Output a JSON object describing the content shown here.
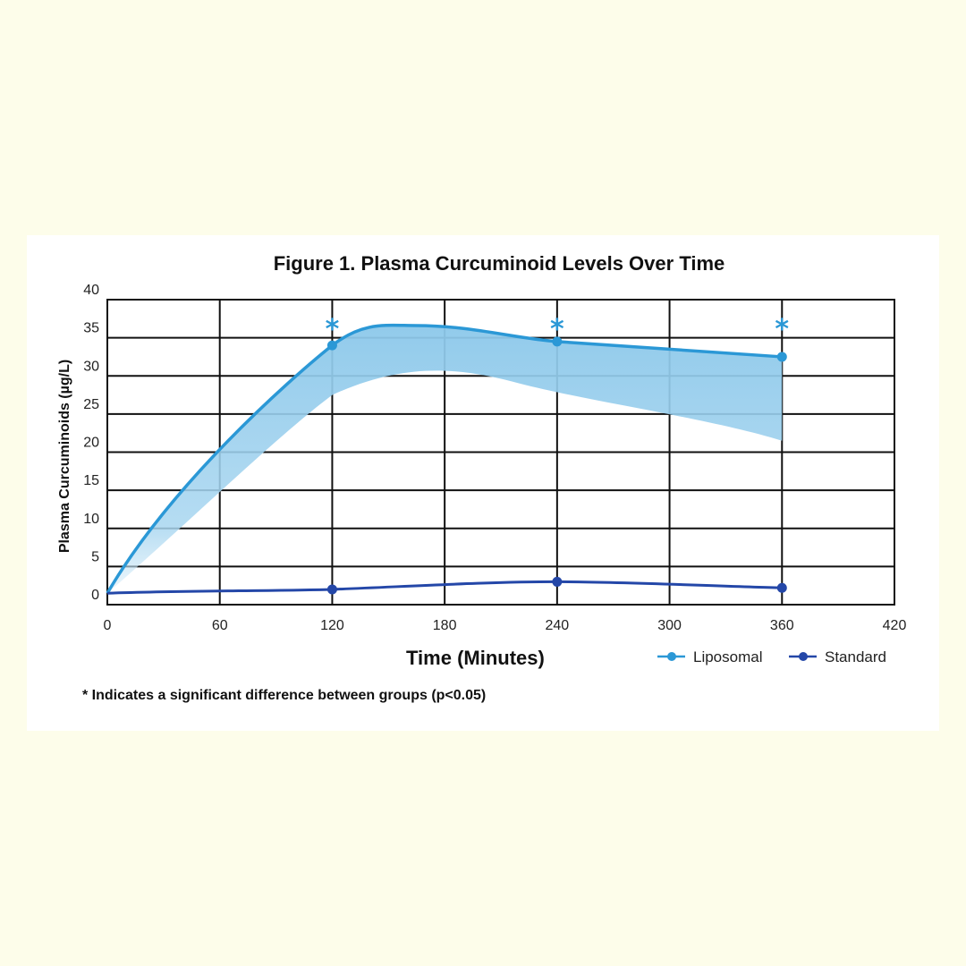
{
  "chart_data": {
    "type": "line",
    "title": "Figure 1. Plasma Curcuminoid Levels Over Time",
    "xlabel": "Time (Minutes)",
    "ylabel": "Plasma Curcuminoids (µg/L)",
    "xlim": [
      0,
      420
    ],
    "ylim": [
      0,
      40
    ],
    "x_ticks": [
      "0",
      "60",
      "120",
      "180",
      "240",
      "300",
      "360",
      "420"
    ],
    "y_ticks": [
      "0",
      "5",
      "10",
      "15",
      "20",
      "25",
      "30",
      "35",
      "40"
    ],
    "grid": true,
    "legend_position": "bottom-right",
    "footnote": "* Indicates a significant difference between groups (p<0.05)",
    "significance_marker": "*",
    "significant_at": [
      120,
      240,
      360
    ],
    "series": [
      {
        "name": "Liposomal",
        "color": "#2b98d6",
        "x": [
          0,
          120,
          240,
          360
        ],
        "y": [
          1.5,
          34,
          34.5,
          32.5
        ]
      },
      {
        "name": "Standard",
        "color": "#2447a8",
        "x": [
          0,
          120,
          240,
          360
        ],
        "y": [
          1.5,
          2,
          3,
          2.2
        ]
      }
    ]
  }
}
